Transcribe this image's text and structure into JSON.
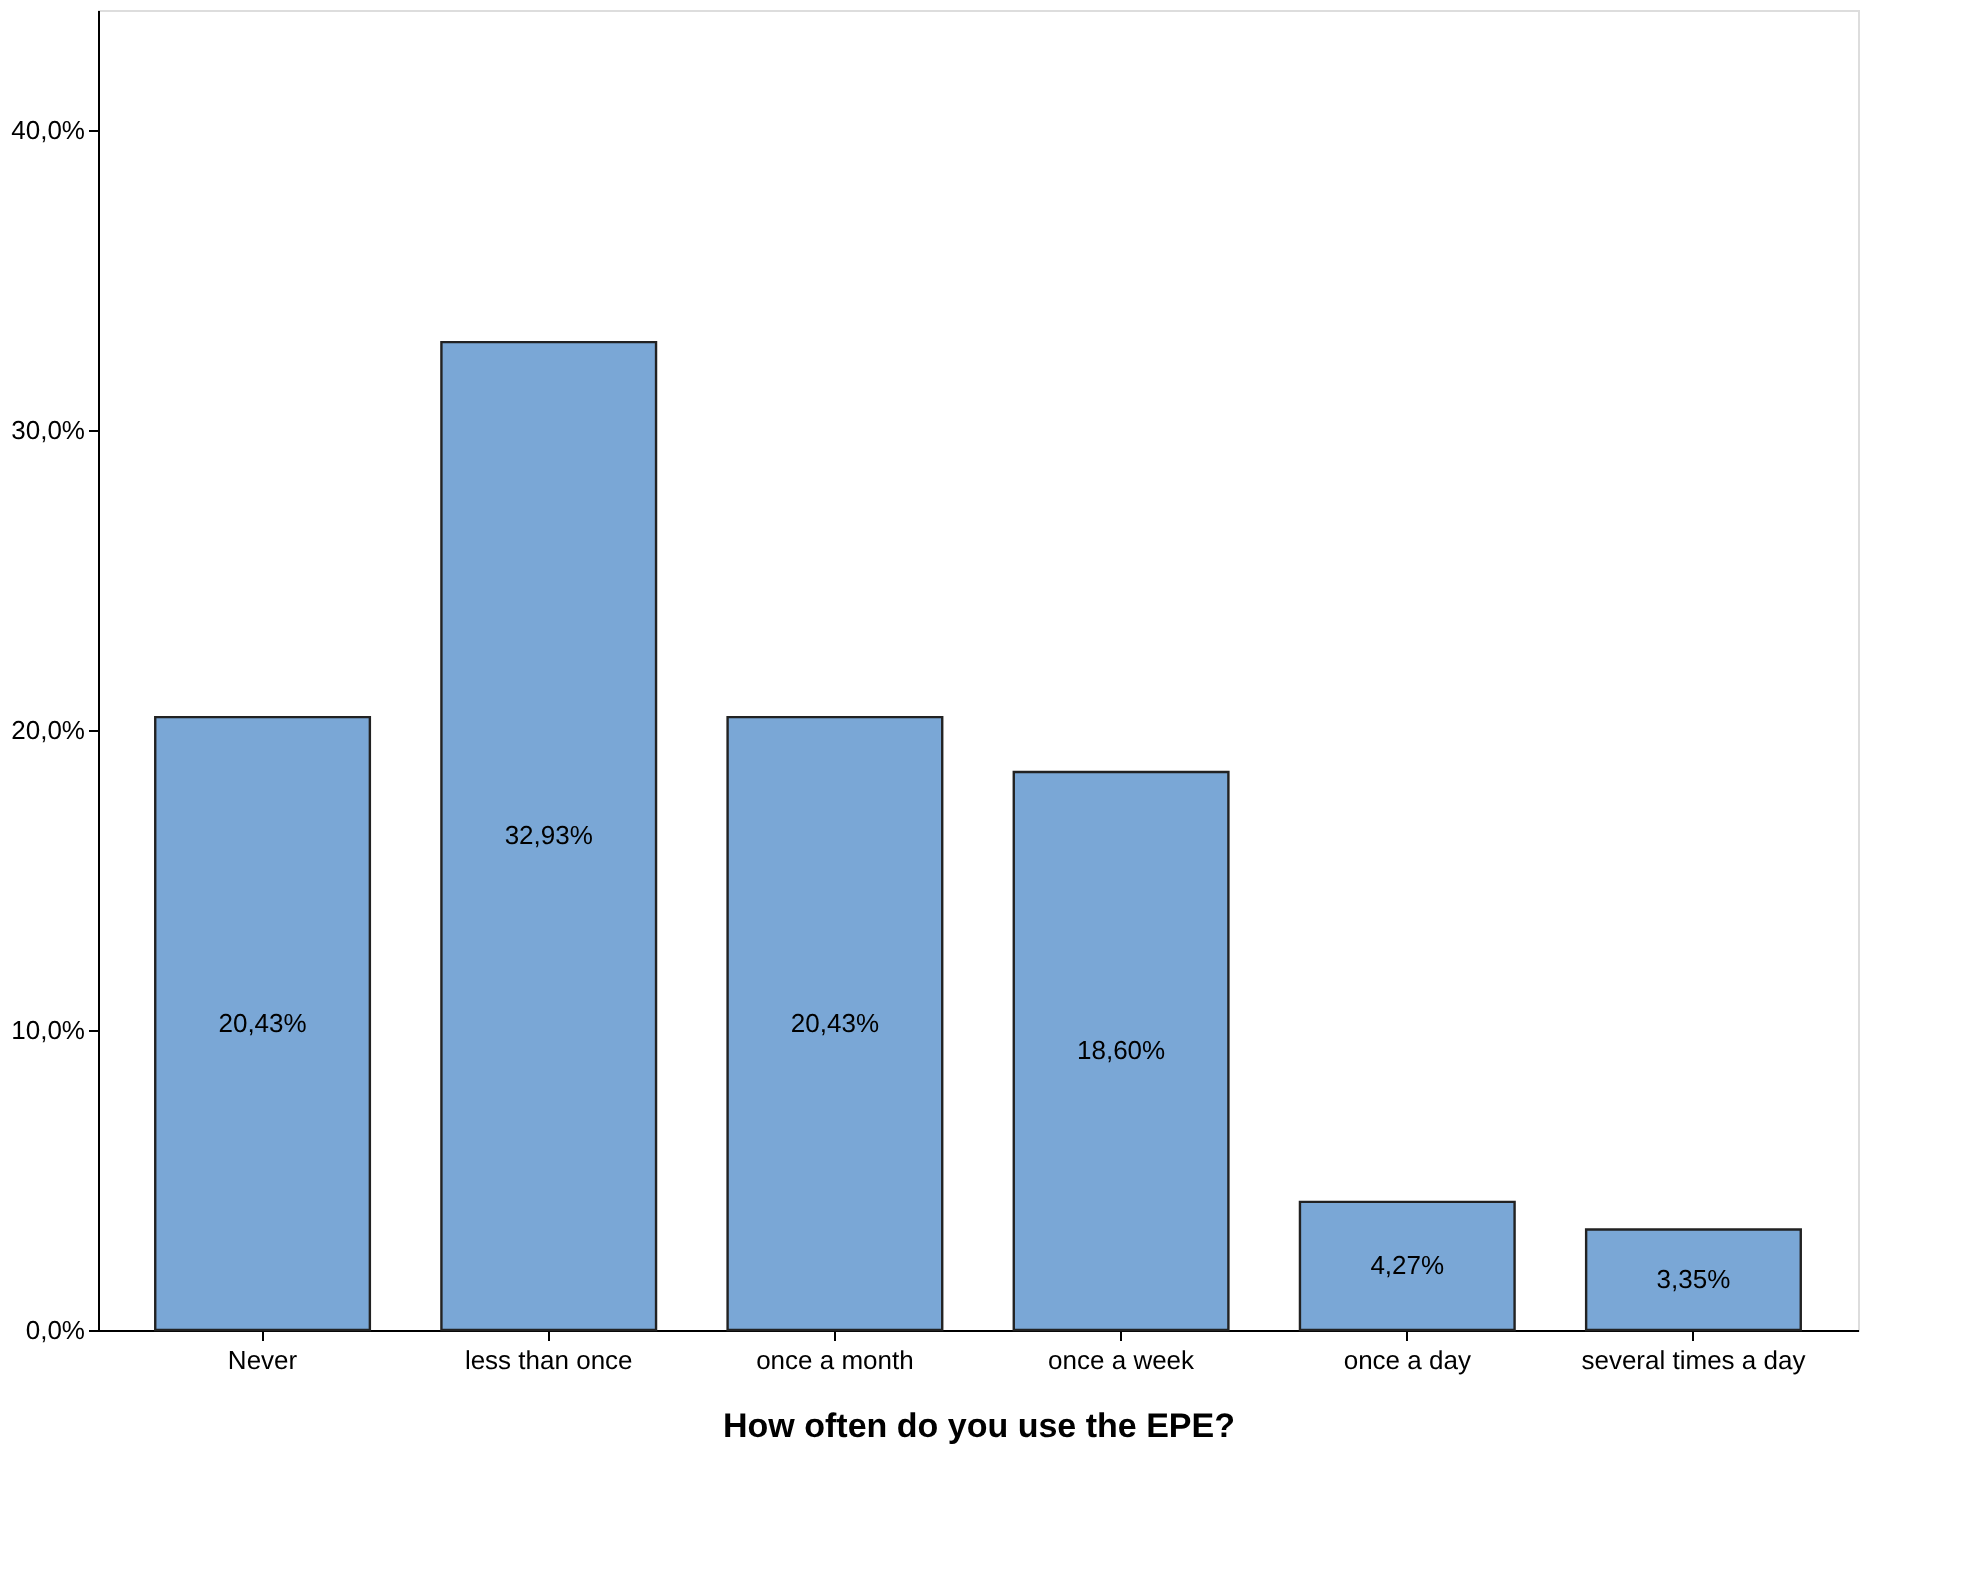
{
  "chart_data": {
    "type": "bar",
    "xlabel": "How often do you use the EPE?",
    "categories": [
      "Never",
      "less than once",
      "once a month",
      "once a week",
      "once a day",
      "several times a day"
    ],
    "values": [
      20.43,
      32.93,
      20.43,
      18.6,
      4.27,
      3.35
    ],
    "value_labels": [
      "20,43%",
      "32,93%",
      "20,43%",
      "18,60%",
      "4,27%",
      "3,35%"
    ],
    "color": "#7aa7d6",
    "ylim": [
      0,
      44
    ],
    "yticks": [
      {
        "value": 0,
        "label": "0,0%"
      },
      {
        "value": 10,
        "label": "10,0%"
      },
      {
        "value": 20,
        "label": "20,0%"
      },
      {
        "value": 30,
        "label": "30,0%"
      },
      {
        "value": 40,
        "label": "40,0%"
      }
    ],
    "grid": false
  }
}
